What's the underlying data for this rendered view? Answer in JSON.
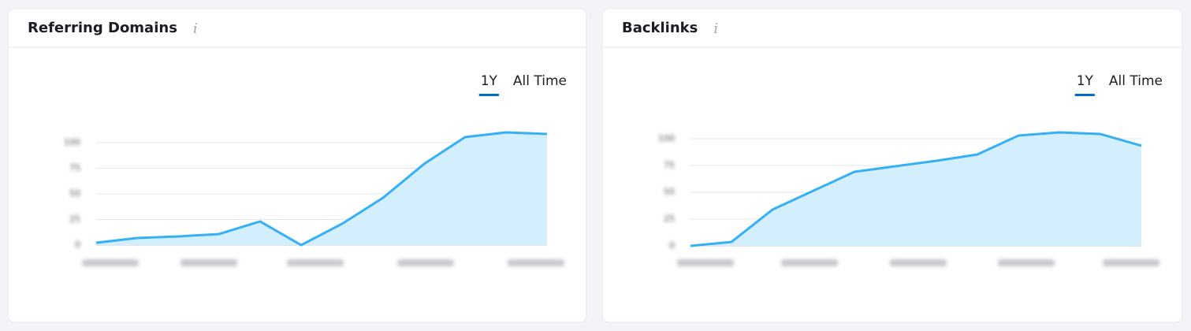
{
  "panels": [
    {
      "title": "Referring Domains",
      "info": "i",
      "tabs": [
        "1Y",
        "All Time"
      ],
      "chart_data": {
        "type": "area",
        "color": "#35b0f5",
        "fill": "#d3eefc",
        "values": [
          2.3,
          6.9,
          8.5,
          10.8,
          23.1,
          0,
          20.8,
          46.2,
          79.2,
          105.4,
          110,
          108.5
        ],
        "ylim": [
          0,
          120
        ],
        "yticks": [
          0,
          25,
          50,
          75,
          100
        ],
        "grid": true
      }
    },
    {
      "title": "Backlinks",
      "info": "i",
      "tabs": [
        "1Y",
        "All Time"
      ],
      "chart_data": {
        "type": "area",
        "color": "#35b0f5",
        "fill": "#d3eefc",
        "values": [
          0,
          3.7,
          33.8,
          51.5,
          69.1,
          74.3,
          79.4,
          85.3,
          102.9,
          105.9,
          104.4,
          93.4
        ],
        "ylim": [
          0,
          120
        ],
        "yticks": [
          0,
          25,
          50,
          75,
          100
        ],
        "grid": true
      }
    }
  ]
}
